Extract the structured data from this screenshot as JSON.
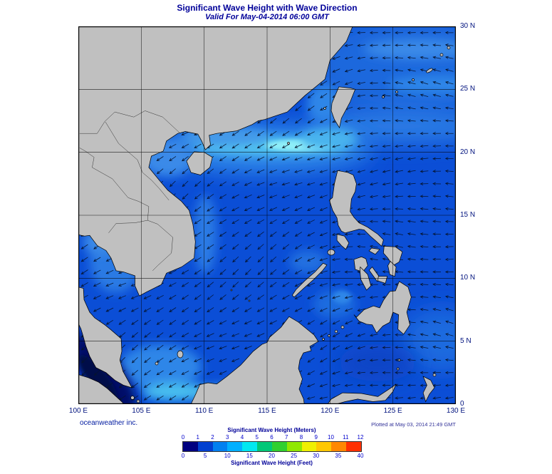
{
  "title": "Significant Wave Height with Wave Direction",
  "subtitle": "Valid For May-04-2014 06:00 GMT",
  "axes": {
    "lat_labels": [
      "30 N",
      "25 N",
      "20 N",
      "15 N",
      "10 N",
      "5 N",
      "0"
    ],
    "lon_labels": [
      "100 E",
      "105 E",
      "110 E",
      "115 E",
      "120 E",
      "125 E",
      "130 E"
    ]
  },
  "footer": {
    "credit": "oceanweather inc.",
    "plotted": "Plotted at May 03, 2014 21:49 GMT"
  },
  "legend": {
    "meters_title": "Significant Wave Height (Meters)",
    "feet_title": "Significant Wave Height (Feet)",
    "meters_ticks": [
      "0",
      "1",
      "2",
      "3",
      "4",
      "5",
      "6",
      "7",
      "8",
      "9",
      "10",
      "11",
      "12"
    ],
    "feet_ticks": [
      "0",
      "5",
      "10",
      "15",
      "20",
      "25",
      "30",
      "35",
      "40"
    ],
    "colors": [
      "#000080",
      "#0040d0",
      "#0080f0",
      "#00b0ff",
      "#00e8f0",
      "#00c878",
      "#30d030",
      "#90e800",
      "#f0f000",
      "#ffc800",
      "#ff8800",
      "#ff3000"
    ]
  },
  "map_colors": {
    "ocean_base": "#0b4ed6",
    "land": "#c0c0c0",
    "coastline": "#000000"
  }
}
